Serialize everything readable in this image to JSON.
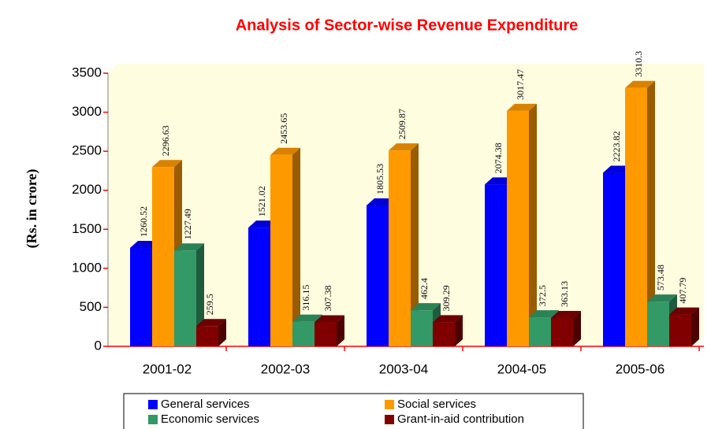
{
  "chart_data": {
    "type": "bar3d",
    "title": "Analysis of Sector-wise Revenue Expenditure",
    "y_label": "(Rs. in crore)",
    "categories": [
      "2001-02",
      "2002-03",
      "2003-04",
      "2004-05",
      "2005-06"
    ],
    "series": [
      {
        "name": "General services",
        "color": "#0000ff",
        "values": [
          1260.52,
          1521.02,
          1805.53,
          2074.38,
          2223.82
        ]
      },
      {
        "name": "Social services",
        "color": "#ff9900",
        "values": [
          2296.63,
          2453.65,
          2509.87,
          3017.47,
          3310.3
        ]
      },
      {
        "name": "Economic services",
        "color": "#339966",
        "values": [
          1227.49,
          316.15,
          462.4,
          372.5,
          573.48
        ]
      },
      {
        "name": "Grant-in-aid contribution",
        "color": "#800000",
        "values": [
          259.5,
          307.38,
          309.29,
          363.13,
          407.79
        ]
      }
    ],
    "ylim": [
      0,
      3500
    ],
    "yticks": [
      0,
      500,
      1000,
      1500,
      2000,
      2500,
      3000,
      3500
    ],
    "legend": "bottom"
  }
}
